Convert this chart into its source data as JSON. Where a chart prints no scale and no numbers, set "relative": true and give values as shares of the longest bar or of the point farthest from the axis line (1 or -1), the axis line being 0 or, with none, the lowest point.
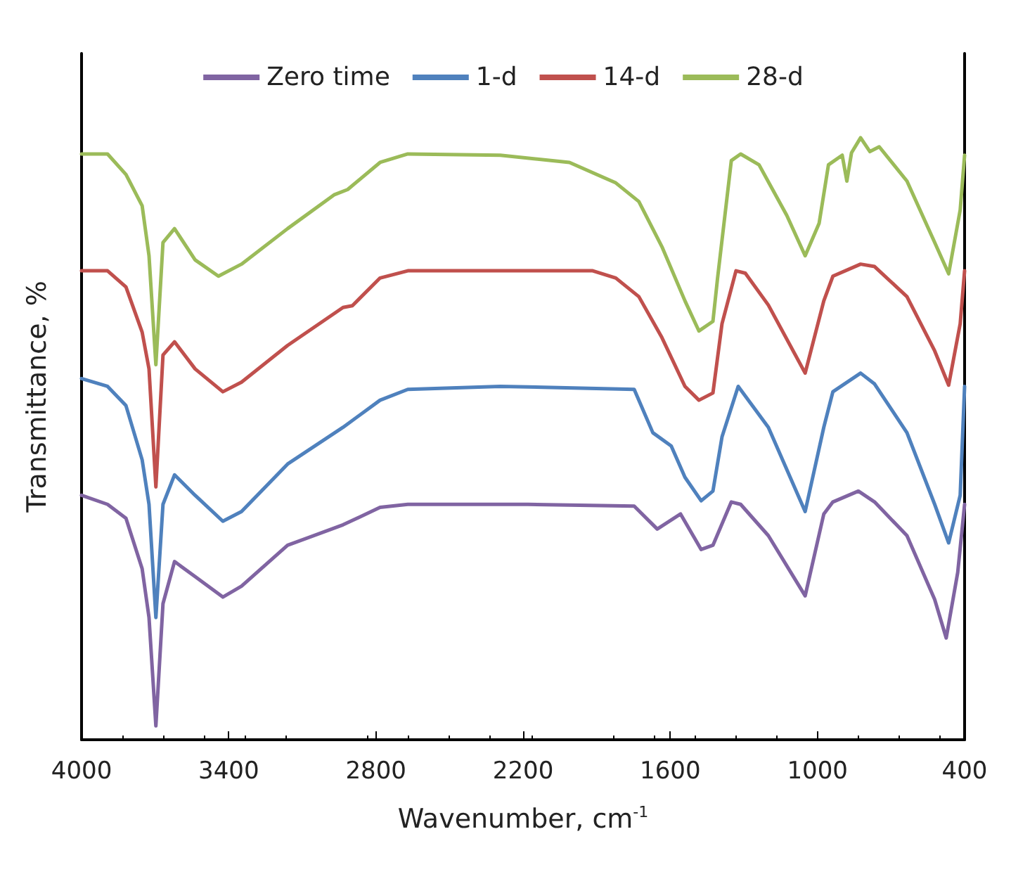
{
  "chart_data": {
    "type": "line",
    "relative": true,
    "xlabel": "Wavenumber, cm$^{-1}$",
    "ylabel": "Transmittance, %",
    "xlim": [
      4000,
      400
    ],
    "xticks": [
      4000,
      3400,
      2800,
      2200,
      1600,
      1000,
      400
    ],
    "legend": "top",
    "grid": false,
    "marker": "none",
    "line_style": "solid",
    "series": [
      {
        "name": "Zero time",
        "color": "#8064a2",
        "x": [
          4000,
          3894,
          3819,
          3753,
          3725,
          3697,
          3668,
          3621,
          3537,
          3424,
          3348,
          3160,
          2934,
          2783,
          2670,
          2293,
          2180,
          1747,
          1653,
          1558,
          1474,
          1426,
          1351,
          1313,
          1200,
          1050,
          974,
          937,
          833,
          767,
          635,
          522,
          475,
          428,
          400
        ],
        "values": [
          0.406,
          0.391,
          0.368,
          0.284,
          0.203,
          0.023,
          0.226,
          0.296,
          0.271,
          0.237,
          0.255,
          0.323,
          0.357,
          0.386,
          0.391,
          0.391,
          0.391,
          0.388,
          0.35,
          0.375,
          0.316,
          0.323,
          0.395,
          0.391,
          0.339,
          0.239,
          0.375,
          0.395,
          0.413,
          0.395,
          0.339,
          0.233,
          0.169,
          0.278,
          0.391
        ]
      },
      {
        "name": "1-d",
        "color": "#4f81bd",
        "x": [
          4000,
          3894,
          3819,
          3753,
          3725,
          3697,
          3668,
          3621,
          3537,
          3424,
          3348,
          3160,
          2934,
          2783,
          2670,
          2293,
          1747,
          1671,
          1596,
          1540,
          1474,
          1426,
          1389,
          1323,
          1200,
          1050,
          974,
          937,
          824,
          767,
          635,
          522,
          465,
          418,
          400
        ],
        "values": [
          0.6,
          0.587,
          0.555,
          0.465,
          0.391,
          0.203,
          0.391,
          0.44,
          0.406,
          0.363,
          0.379,
          0.458,
          0.519,
          0.564,
          0.582,
          0.587,
          0.582,
          0.51,
          0.488,
          0.436,
          0.397,
          0.413,
          0.503,
          0.587,
          0.519,
          0.379,
          0.519,
          0.578,
          0.609,
          0.591,
          0.51,
          0.391,
          0.327,
          0.406,
          0.587
        ]
      },
      {
        "name": "14-d",
        "color": "#c0504d",
        "x": [
          4000,
          3894,
          3819,
          3753,
          3725,
          3697,
          3668,
          3621,
          3537,
          3424,
          3348,
          3160,
          2934,
          2896,
          2783,
          2670,
          2293,
          1916,
          1822,
          1728,
          1634,
          1540,
          1483,
          1426,
          1389,
          1332,
          1294,
          1200,
          1050,
          974,
          937,
          824,
          767,
          635,
          522,
          465,
          418,
          400
        ],
        "values": [
          0.779,
          0.779,
          0.752,
          0.677,
          0.616,
          0.42,
          0.639,
          0.661,
          0.616,
          0.578,
          0.594,
          0.655,
          0.718,
          0.721,
          0.767,
          0.779,
          0.779,
          0.779,
          0.767,
          0.736,
          0.668,
          0.587,
          0.564,
          0.576,
          0.691,
          0.779,
          0.775,
          0.722,
          0.609,
          0.729,
          0.77,
          0.79,
          0.786,
          0.736,
          0.646,
          0.589,
          0.691,
          0.779
        ]
      },
      {
        "name": "28-d",
        "color": "#9bbb59",
        "x": [
          4000,
          3894,
          3819,
          3753,
          3725,
          3697,
          3668,
          3621,
          3537,
          3442,
          3348,
          3160,
          2971,
          2915,
          2783,
          2670,
          2293,
          2011,
          1822,
          1728,
          1634,
          1540,
          1483,
          1426,
          1407,
          1351,
          1313,
          1238,
          1125,
          1050,
          993,
          955,
          899,
          880,
          861,
          824,
          786,
          748,
          635,
          522,
          465,
          418,
          400
        ],
        "values": [
          0.973,
          0.973,
          0.939,
          0.887,
          0.804,
          0.623,
          0.826,
          0.849,
          0.797,
          0.77,
          0.79,
          0.849,
          0.905,
          0.914,
          0.959,
          0.973,
          0.971,
          0.959,
          0.925,
          0.894,
          0.819,
          0.729,
          0.679,
          0.695,
          0.767,
          0.962,
          0.973,
          0.955,
          0.871,
          0.804,
          0.858,
          0.955,
          0.971,
          0.928,
          0.975,
          1.0,
          0.977,
          0.985,
          0.928,
          0.826,
          0.774,
          0.88,
          0.971
        ]
      }
    ]
  }
}
